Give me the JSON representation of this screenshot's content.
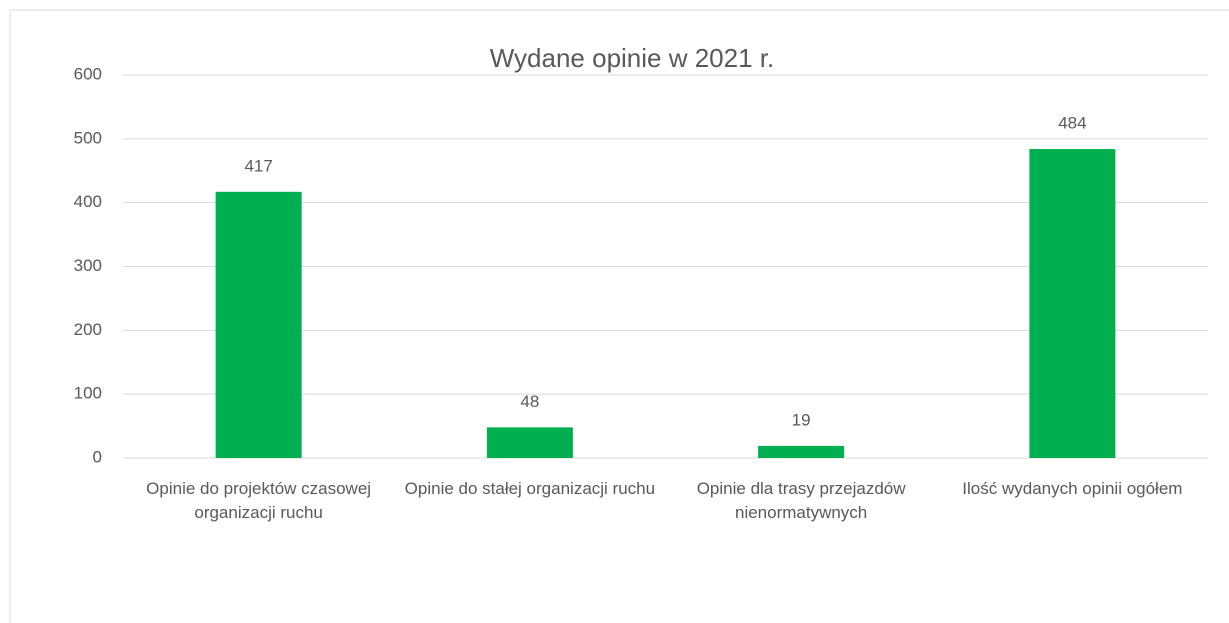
{
  "chart_data": {
    "type": "bar",
    "title": "Wydane opinie w 2021 r.",
    "categories": [
      "Opinie do projektów czasowej organizacji ruchu",
      "Opinie do stałej organizacji ruchu",
      "Opinie dla trasy przejazdów nienormatywnych",
      "Ilość wydanych opinii ogółem"
    ],
    "values": [
      417,
      48,
      19,
      484
    ],
    "color": "#00b050",
    "ylim": [
      0,
      600
    ],
    "yticks": [
      0,
      100,
      200,
      300,
      400,
      500,
      600
    ],
    "grid": true
  }
}
